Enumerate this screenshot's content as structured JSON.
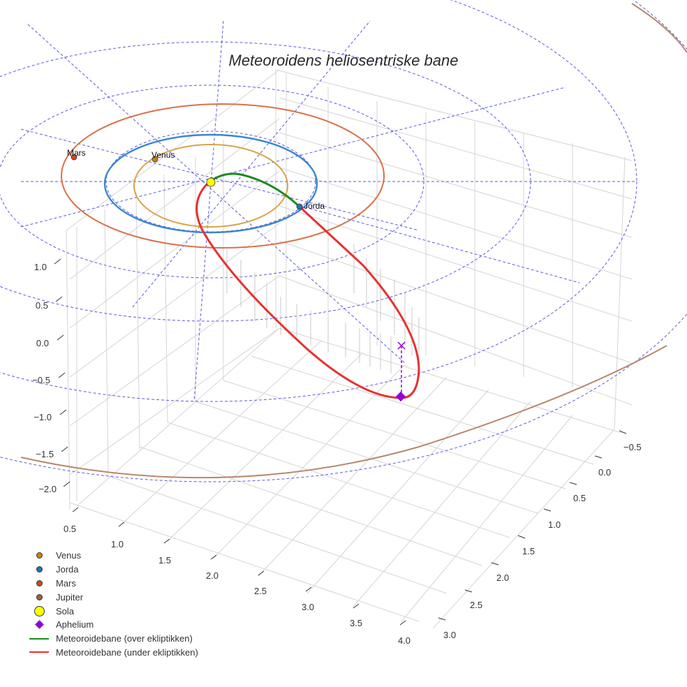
{
  "title": "Meteoroidens heliosentriske bane",
  "colors": {
    "venus": "#c8801c",
    "jorda": "#1f77b4",
    "mars": "#cc4a1c",
    "jupiter": "#a0603c",
    "sola": "#ffff00",
    "aphelium": "#9400d3",
    "over": "#1a8a1a",
    "under": "#e83030",
    "venus_orbit": "#d9a44a",
    "jorda_orbit": "#3a86d0",
    "mars_orbit": "#d9704a",
    "jupiter_orbit": "#b8886a",
    "grid_dashed": "#5050e0",
    "axis_grid": "#d0d0d0"
  },
  "legend": {
    "items": [
      {
        "label": "Venus",
        "symbol": "dot",
        "color": "#c8801c"
      },
      {
        "label": "Jorda",
        "symbol": "dot",
        "color": "#1f77b4"
      },
      {
        "label": "Mars",
        "symbol": "dot",
        "color": "#cc4a1c"
      },
      {
        "label": "Jupiter",
        "symbol": "dot",
        "color": "#a0603c"
      },
      {
        "label": "Sola",
        "symbol": "sun",
        "color": "#ffff00"
      },
      {
        "label": "Aphelium",
        "symbol": "diamond",
        "color": "#9400d3"
      },
      {
        "label": "Meteoroidebane (over ekliptikken)",
        "symbol": "line",
        "color": "#1a8a1a"
      },
      {
        "label": "Meteoroidebane (under ekliptikken)",
        "symbol": "line",
        "color": "#e83030"
      }
    ]
  },
  "planet_labels": {
    "mars": "Mars",
    "venus": "Venus",
    "jorda": "Jorda"
  },
  "chart_data": {
    "type": "scatter3d",
    "title": "Meteoroidens heliosentriske bane",
    "xlabel": "",
    "ylabel": "",
    "zlabel": "",
    "x_ticks": [
      "0.5",
      "1.0",
      "1.5",
      "2.0",
      "2.5",
      "3.0",
      "3.5",
      "4.0"
    ],
    "y_ticks": [
      "−0.5",
      "0.0",
      "0.5",
      "1.0",
      "1.5",
      "2.0",
      "2.5",
      "3.0"
    ],
    "z_ticks": [
      "1.0",
      "0.5",
      "0.0",
      "−0.5",
      "−1.0",
      "−1.5",
      "−2.0"
    ],
    "x_range": [
      0.5,
      4.0
    ],
    "y_range": [
      -0.5,
      3.0
    ],
    "z_range": [
      -2.0,
      1.0
    ],
    "grid": true,
    "legend_position": "lower-left",
    "series": [
      {
        "name": "Venus",
        "type": "orbit+marker",
        "orbit_radius_au": 0.72
      },
      {
        "name": "Jorda",
        "type": "orbit+marker",
        "orbit_radius_au": 1.0
      },
      {
        "name": "Mars",
        "type": "orbit+marker",
        "orbit_radius_au": 1.52
      },
      {
        "name": "Jupiter",
        "type": "orbit+marker",
        "orbit_radius_au": 5.2
      },
      {
        "name": "Sola",
        "type": "marker",
        "position": [
          0,
          0,
          0
        ]
      },
      {
        "name": "Aphelium",
        "type": "marker",
        "approx_z": -0.7
      },
      {
        "name": "Meteoroidebane (over ekliptikken)",
        "type": "line"
      },
      {
        "name": "Meteoroidebane (under ekliptikken)",
        "type": "line"
      }
    ],
    "annotations": [
      "Mars",
      "Venus",
      "Jorda"
    ]
  }
}
